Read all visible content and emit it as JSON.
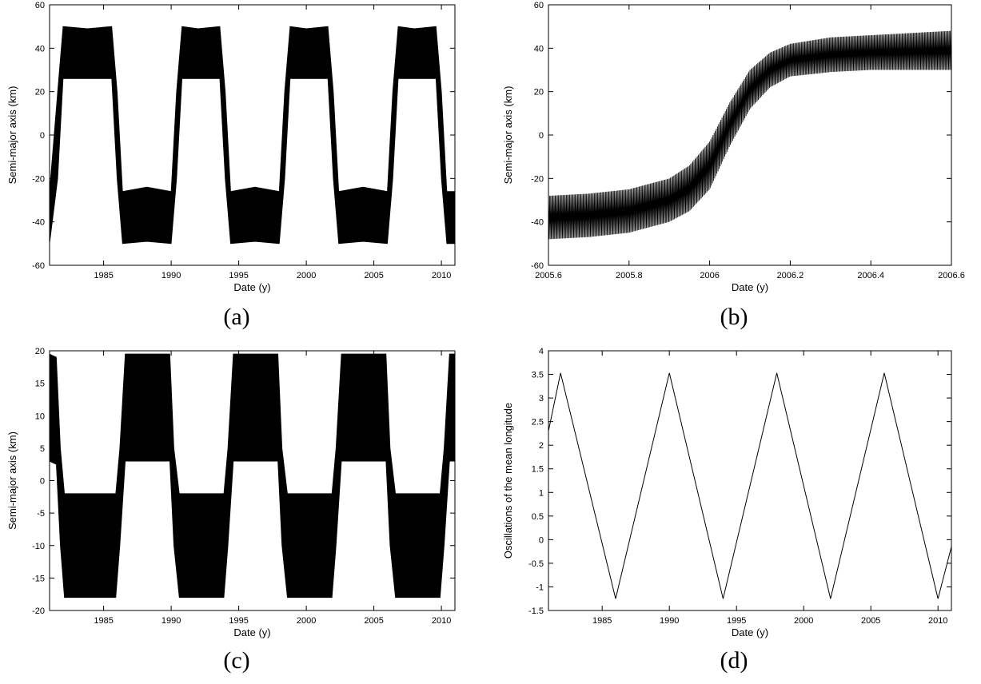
{
  "captions": [
    "(a)",
    "(b)",
    "(c)",
    "(d)"
  ],
  "chart_data": [
    {
      "id": "a",
      "type": "line",
      "render": "band",
      "xlabel": "Date (y)",
      "ylabel": "Semi-major axis (km)",
      "xlim": [
        1981,
        2011
      ],
      "ylim": [
        -60,
        60
      ],
      "xticks": [
        1985,
        1990,
        1995,
        2000,
        2005,
        2010
      ],
      "yticks": [
        -60,
        -40,
        -20,
        0,
        20,
        40,
        60
      ],
      "grid": false,
      "band": {
        "x": [
          1981,
          1981.6,
          1982,
          1983.8,
          1985.6,
          1986,
          1986.4,
          1988.2,
          1990,
          1990.4,
          1990.8,
          1992,
          1993.6,
          1994,
          1994.4,
          1996.2,
          1998,
          1998.4,
          1998.8,
          2000,
          2001.6,
          2002,
          2002.4,
          2004.2,
          2006,
          2006.4,
          2006.8,
          2008,
          2009.6,
          2010,
          2010.4,
          2011
        ],
        "upper": [
          -26,
          20,
          50,
          49,
          50,
          20,
          -26,
          -24,
          -26,
          20,
          50,
          49,
          50,
          20,
          -26,
          -24,
          -26,
          20,
          50,
          49,
          50,
          20,
          -26,
          -24,
          -26,
          20,
          50,
          49,
          50,
          20,
          -26,
          -26
        ],
        "lower": [
          -50,
          -20,
          26,
          26,
          26,
          -20,
          -50,
          -49,
          -50,
          -20,
          26,
          26,
          26,
          -20,
          -50,
          -49,
          -50,
          -20,
          26,
          26,
          26,
          -20,
          -50,
          -49,
          -50,
          -20,
          26,
          26,
          26,
          -20,
          -50,
          -50
        ]
      }
    },
    {
      "id": "b",
      "type": "line",
      "render": "oscillation",
      "xlabel": "Date (y)",
      "ylabel": "Semi-major axis (km)",
      "xlim": [
        2005.6,
        2006.6
      ],
      "ylim": [
        -60,
        60
      ],
      "xticks": [
        2005.6,
        2005.8,
        2006,
        2006.2,
        2006.4,
        2006.6
      ],
      "yticks": [
        -60,
        -40,
        -20,
        0,
        20,
        40,
        60
      ],
      "grid": false,
      "band": {
        "x": [
          2005.6,
          2005.7,
          2005.8,
          2005.9,
          2005.95,
          2006.0,
          2006.05,
          2006.1,
          2006.15,
          2006.2,
          2006.3,
          2006.4,
          2006.5,
          2006.6
        ],
        "upper": [
          -28,
          -27,
          -25,
          -20,
          -14,
          -3,
          15,
          30,
          38,
          42,
          45,
          46,
          47,
          48
        ],
        "lower": [
          -48,
          -47,
          -45,
          -40,
          -35,
          -25,
          -5,
          12,
          22,
          27,
          29,
          30,
          30,
          30
        ]
      }
    },
    {
      "id": "c",
      "type": "line",
      "render": "band",
      "xlabel": "Date (y)",
      "ylabel": "Semi-major axis (km)",
      "xlim": [
        1981,
        2011
      ],
      "ylim": [
        -20,
        20
      ],
      "xticks": [
        1985,
        1990,
        1995,
        2000,
        2005,
        2010
      ],
      "yticks": [
        -20,
        -15,
        -10,
        -5,
        0,
        5,
        10,
        15,
        20
      ],
      "grid": false,
      "band": {
        "x": [
          1981,
          1981.5,
          1981.8,
          1982.1,
          1984,
          1985.9,
          1986.2,
          1986.6,
          1988.5,
          1989.9,
          1990.2,
          1990.6,
          1992,
          1993.9,
          1994.2,
          1994.6,
          1996.5,
          1997.9,
          1998.2,
          1998.6,
          2000,
          2001.9,
          2002.2,
          2002.6,
          2004.5,
          2005.9,
          2006.2,
          2006.6,
          2008,
          2009.9,
          2010.2,
          2010.6,
          2011
        ],
        "upper": [
          19.5,
          19,
          5,
          -2,
          -2,
          -2,
          5,
          19.5,
          19.5,
          19.5,
          5,
          -2,
          -2,
          -2,
          5,
          19.5,
          19.5,
          19.5,
          5,
          -2,
          -2,
          -2,
          5,
          19.5,
          19.5,
          19.5,
          5,
          -2,
          -2,
          -2,
          5,
          19.5,
          19.5
        ],
        "lower": [
          3,
          2.5,
          -10,
          -18,
          -18,
          -18,
          -10,
          3,
          3,
          3,
          -10,
          -18,
          -18,
          -18,
          -10,
          3,
          3,
          3,
          -10,
          -18,
          -18,
          -18,
          -10,
          3,
          3,
          3,
          -10,
          -18,
          -18,
          -18,
          -10,
          3,
          3
        ]
      }
    },
    {
      "id": "d",
      "type": "line",
      "render": "line",
      "xlabel": "Date (y)",
      "ylabel": "Oscillations of the mean longitude",
      "xlim": [
        1981,
        2011
      ],
      "ylim": [
        -1.5,
        4
      ],
      "xticks": [
        1985,
        1990,
        1995,
        2000,
        2005,
        2010
      ],
      "yticks": [
        -1.5,
        -1,
        -0.5,
        0,
        0.5,
        1,
        1.5,
        2,
        2.5,
        3,
        3.5,
        4
      ],
      "grid": false,
      "series": [
        {
          "x": [
            1981,
            1981.9,
            1986,
            1990,
            1994,
            1998,
            2002,
            2006,
            2010,
            2011
          ],
          "y": [
            2.3,
            3.53,
            -1.25,
            3.53,
            -1.25,
            3.53,
            -1.25,
            3.53,
            -1.25,
            -0.15
          ]
        }
      ]
    }
  ]
}
